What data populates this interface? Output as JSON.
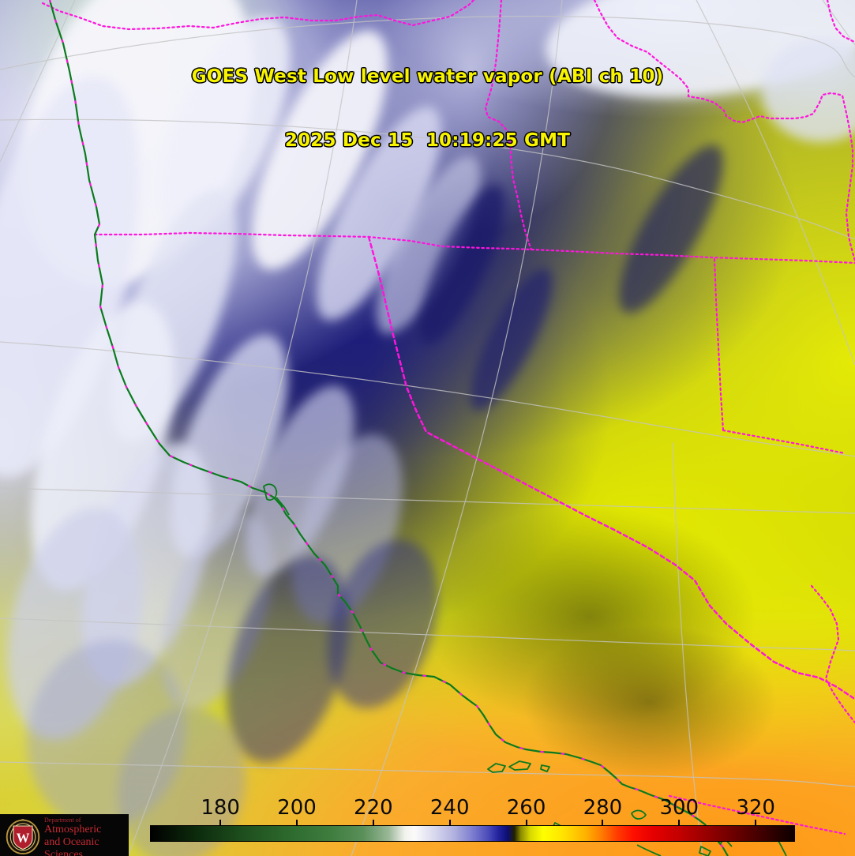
{
  "title": {
    "line1": "GOES West Low level water vapor (ABI ch 10)",
    "line2": "2025 Dec 15  10:19:25 GMT"
  },
  "colorbar": {
    "ticks": [
      "180",
      "200",
      "220",
      "240",
      "260",
      "280",
      "300",
      "320"
    ],
    "description": "brightness temperature colorbar",
    "colormap_stops": [
      {
        "value": 162,
        "color": "#000000"
      },
      {
        "value": 185,
        "color": "#1d4d1d"
      },
      {
        "value": 205,
        "color": "#3f7d3f"
      },
      {
        "value": 228,
        "color": "#f8f8f4"
      },
      {
        "value": 240,
        "color": "#b3b3e0"
      },
      {
        "value": 252,
        "color": "#2323a0"
      },
      {
        "value": 256,
        "color": "#202000"
      },
      {
        "value": 263,
        "color": "#ffff00"
      },
      {
        "value": 275,
        "color": "#ff7d00"
      },
      {
        "value": 288,
        "color": "#ff0f00"
      },
      {
        "value": 310,
        "color": "#720000"
      },
      {
        "value": 330,
        "color": "#0d0000"
      }
    ]
  },
  "logo": {
    "dept": "Department of",
    "name_line1": "Atmospheric",
    "name_line2": "and Oceanic Sciences",
    "monogram": "W"
  },
  "overlay_colors": {
    "title_text": "#f8f400",
    "state_borders": "#ff14dd",
    "coastline": "#0b7a1e",
    "graticule": "#c4c4c4"
  }
}
